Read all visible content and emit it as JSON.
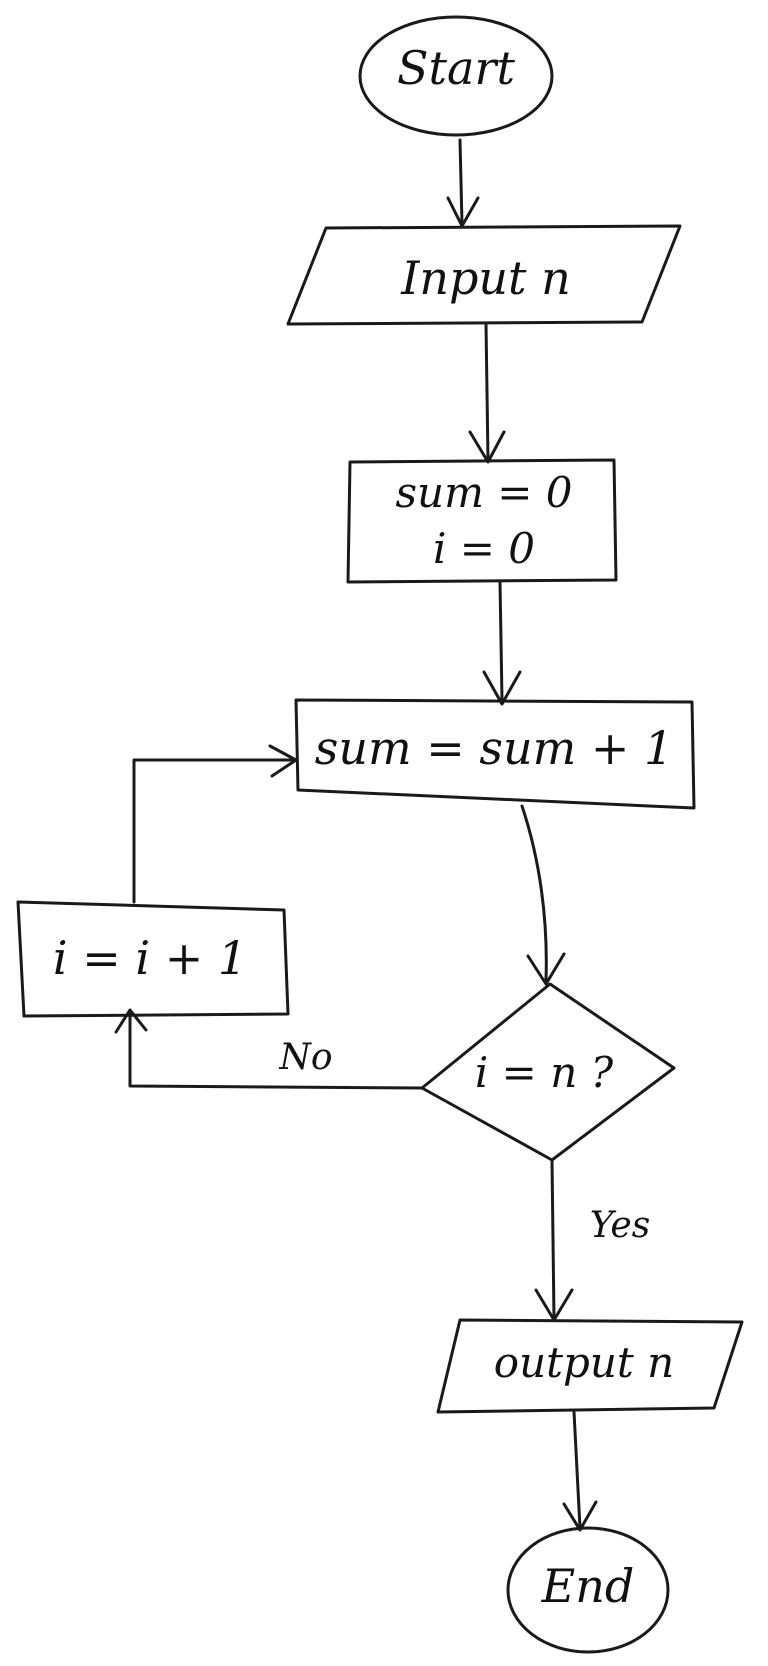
{
  "nodes": {
    "start": "Start",
    "input": "Input n",
    "init_sum": "sum = 0",
    "init_i": "i = 0",
    "accumulate": "sum = sum + 1",
    "increment": "i = i + 1",
    "condition": "i = n ?",
    "output": "output n",
    "end": "End"
  },
  "edges": {
    "no_label": "No",
    "yes_label": "Yes"
  }
}
